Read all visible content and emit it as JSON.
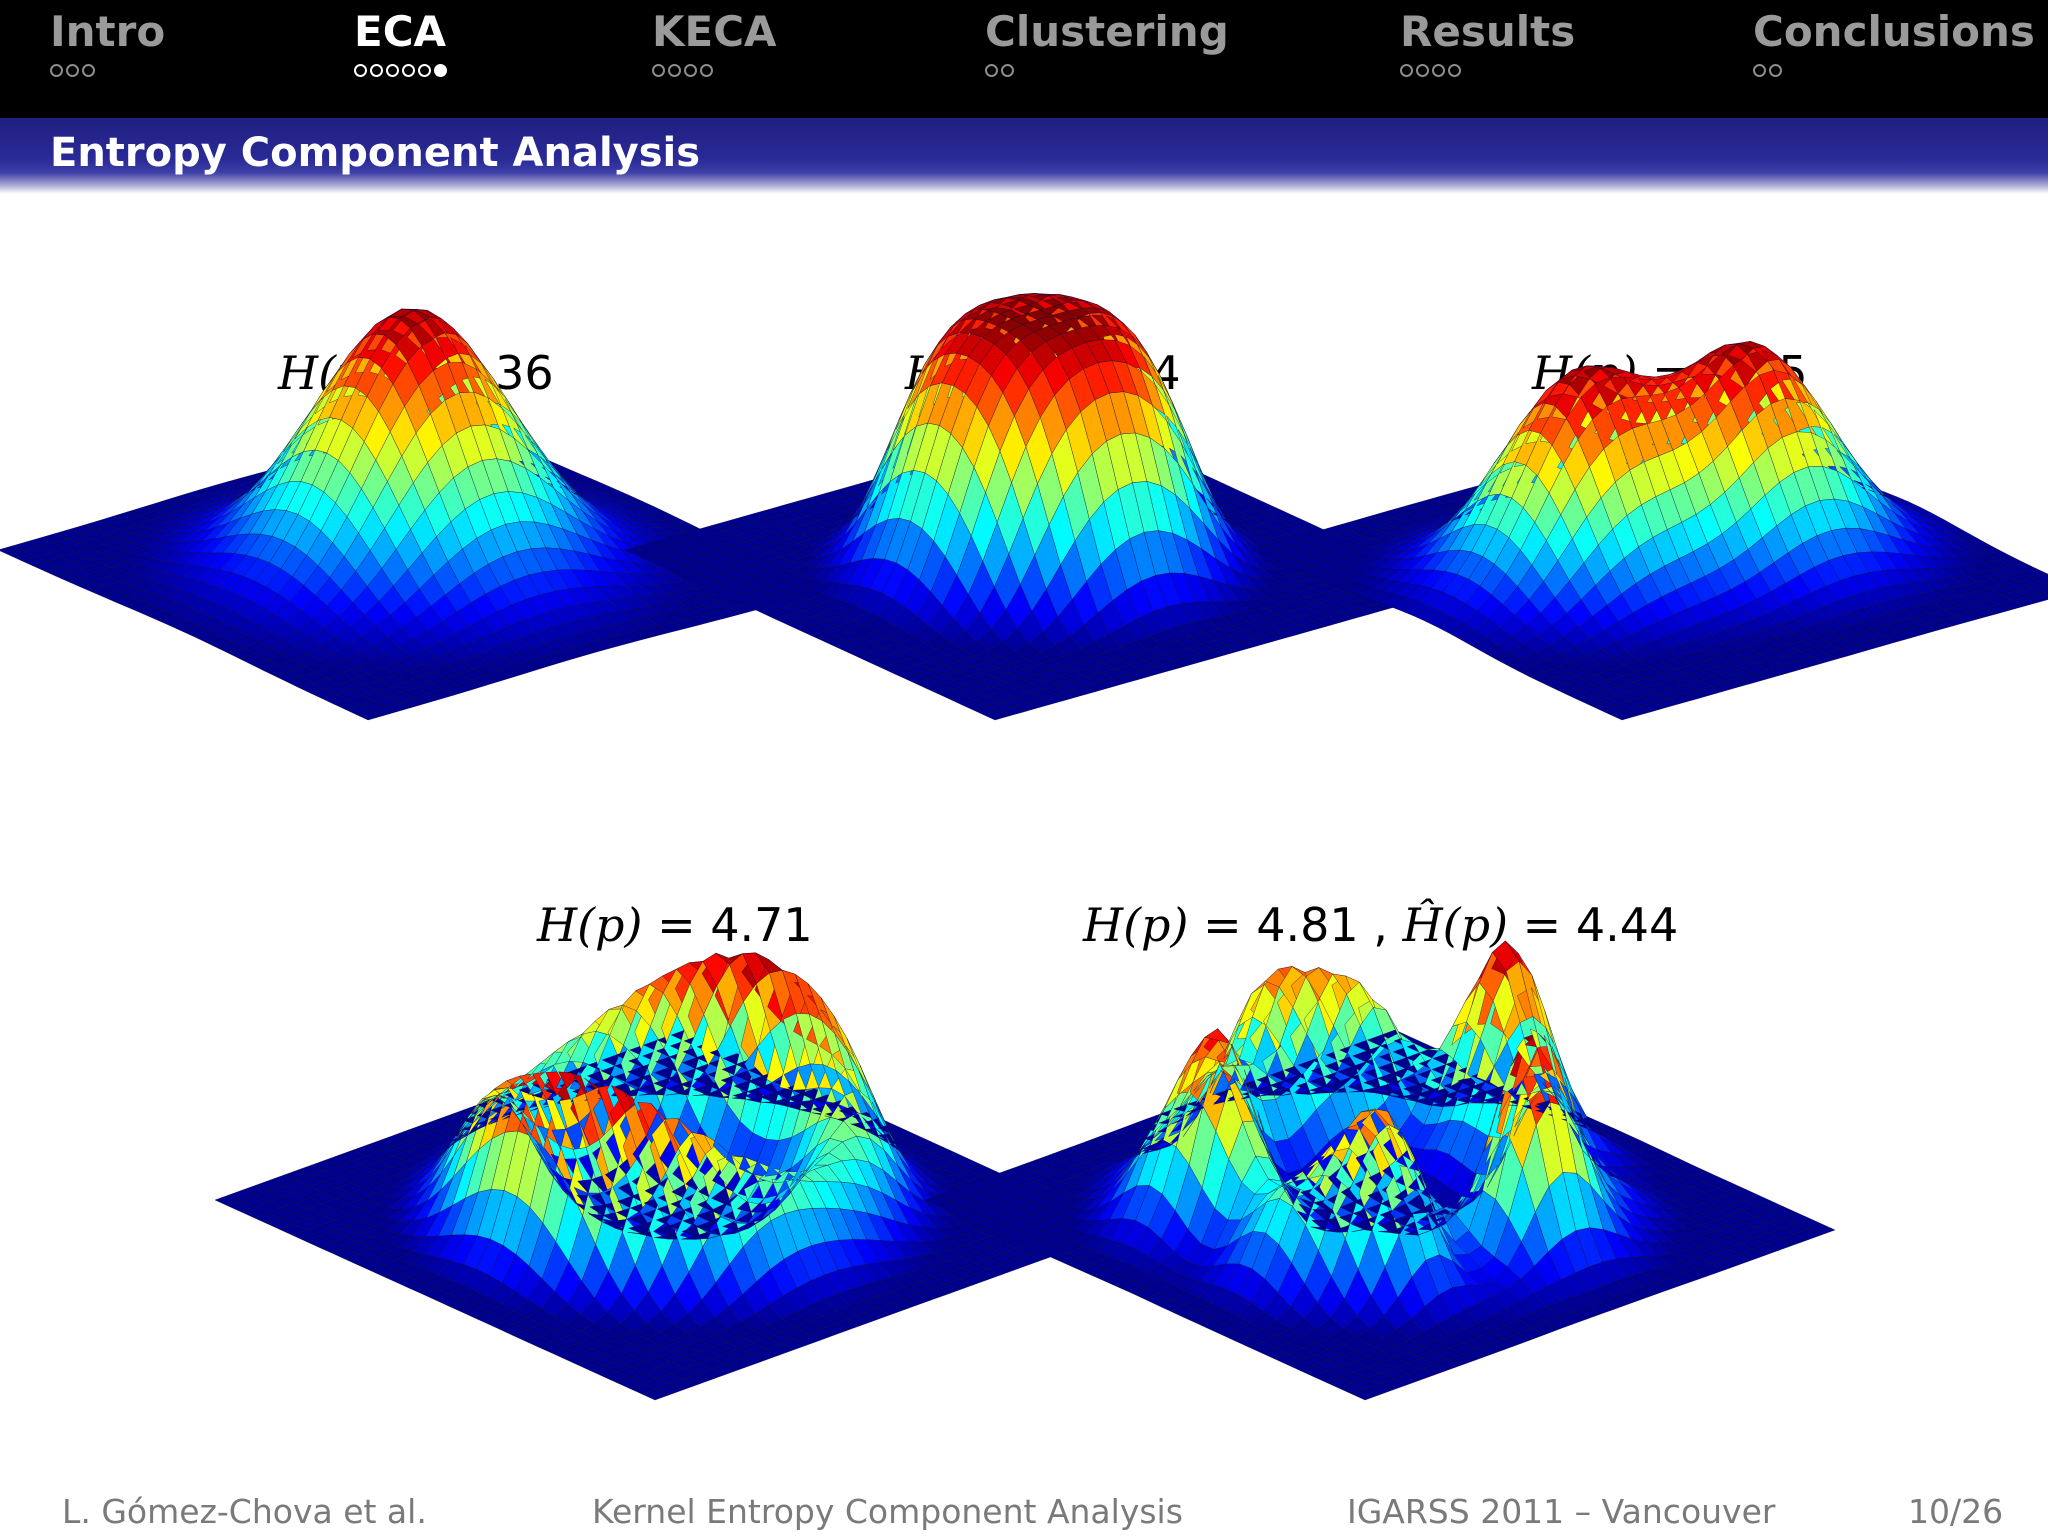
{
  "nav": {
    "sections": [
      {
        "title": "Intro",
        "dots": 3,
        "current": -1,
        "active": false
      },
      {
        "title": "ECA",
        "dots": 6,
        "current": 5,
        "active": true
      },
      {
        "title": "KECA",
        "dots": 4,
        "current": -1,
        "active": false
      },
      {
        "title": "Clustering",
        "dots": 2,
        "current": -1,
        "active": false
      },
      {
        "title": "Results",
        "dots": 4,
        "current": -1,
        "active": false
      },
      {
        "title": "Conclusions",
        "dots": 2,
        "current": -1,
        "active": false
      }
    ]
  },
  "frame": {
    "title": "Entropy Component Analysis"
  },
  "plots": [
    {
      "name": "H(p)",
      "value": "4.36",
      "surface": "gaussian"
    },
    {
      "name": "H(p)",
      "value": "4.74",
      "surface": "flat-top"
    },
    {
      "name": "H(p)",
      "value": "5.05",
      "surface": "bimodal"
    },
    {
      "name": "H(p)",
      "value": "4.71",
      "surface": "ring"
    },
    {
      "name": "H(p)",
      "value": "4.81",
      "estimate_name": "Ĥ(p)",
      "estimate_value": "4.44",
      "surface": "noisy-ring"
    }
  ],
  "footer": {
    "author": "L. Gómez-Chova et al.",
    "talk_title": "Kernel Entropy Component Analysis",
    "venue": "IGARSS 2011 – Vancouver",
    "page": "10/26"
  },
  "colors": {
    "nav_bg": "#000000",
    "title_bar": "#2a2a98",
    "surface_base": "#00008f"
  }
}
